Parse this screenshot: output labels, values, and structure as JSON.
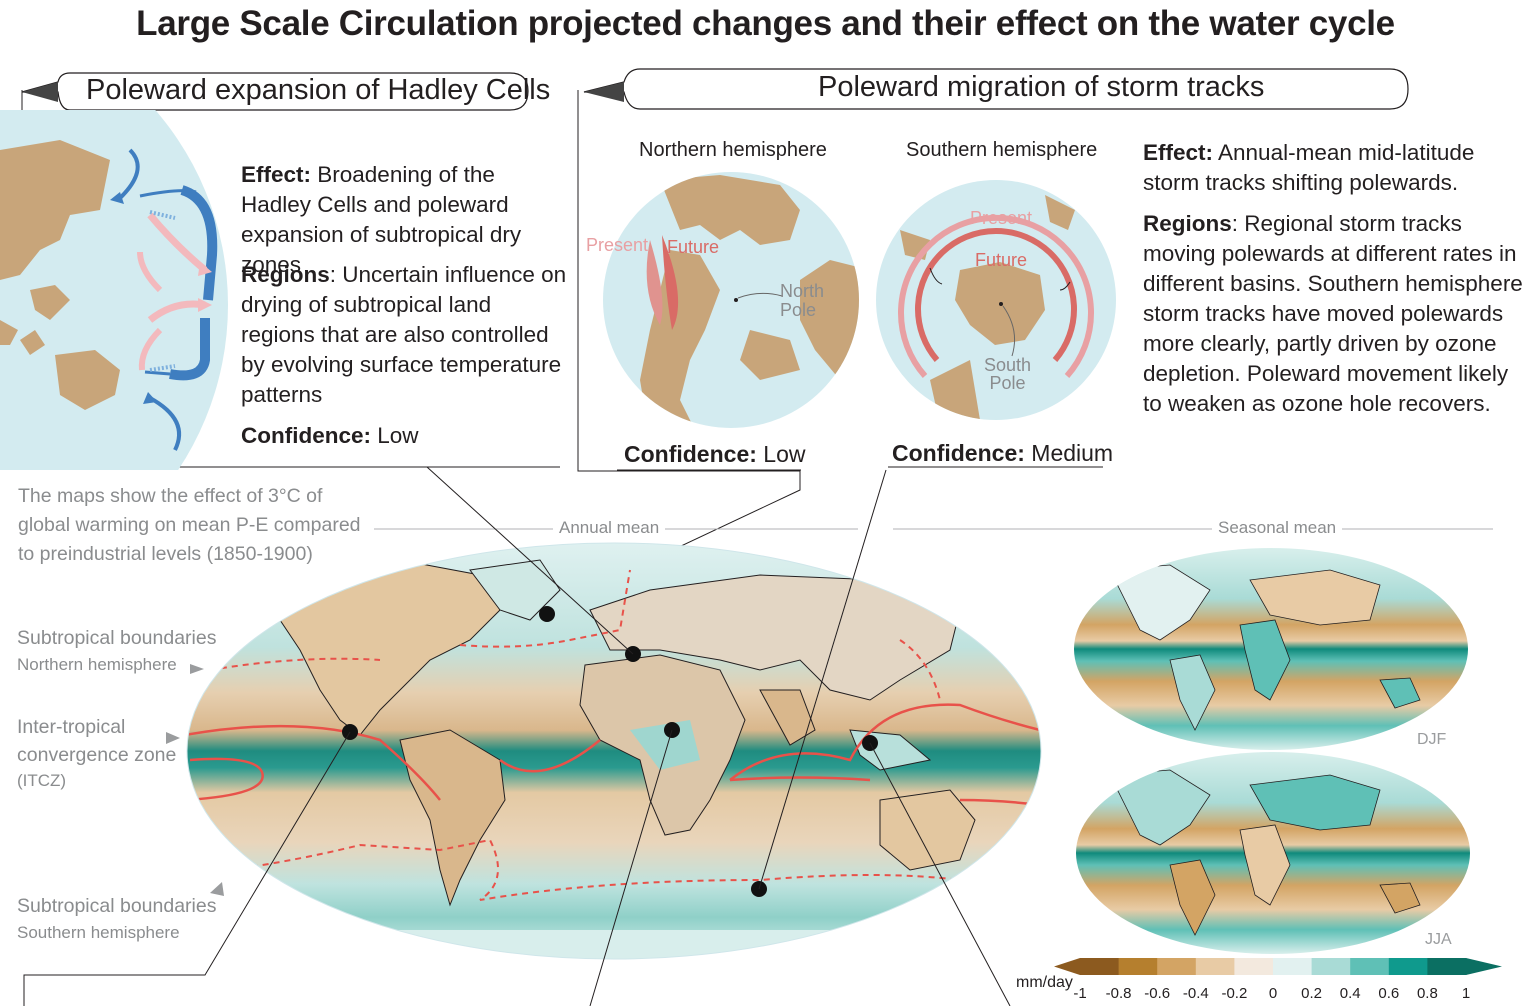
{
  "title": "Large Scale Circulation projected changes and their effect on the water cycle",
  "hadley": {
    "header": "Poleward expansion of Hadley Cells",
    "effect_label": "Effect:",
    "effect_text": " Broadening of the Hadley Cells and poleward expansion of subtropical dry zones",
    "regions_label": "Regions",
    "regions_text": ": Uncertain influence on drying of subtropical land regions that are also controlled by evolving surface temperature patterns",
    "confidence_label": "Confidence:",
    "confidence_value": " Low"
  },
  "storm": {
    "header": "Poleward migration of storm tracks",
    "nh_label": "Northern hemisphere",
    "sh_label": "Southern hemisphere",
    "present": "Present",
    "future": "Future",
    "north_pole": [
      "North",
      "Pole"
    ],
    "south_pole": [
      "South",
      "Pole"
    ],
    "nh_conf_label": "Confidence:",
    "nh_conf_value": " Low",
    "sh_conf_label": "Confidence:",
    "sh_conf_value": " Medium",
    "effect_label": "Effect:",
    "effect_text": " Annual-mean mid-latitude storm tracks shifting polewards.",
    "regions_label": "Regions",
    "regions_text": ": Regional storm tracks moving polewards at different rates in different basins. Southern hemisphere storm tracks have moved polewards more clearly, partly driven by ozone depletion. Poleward movement likely to weaken as ozone hole recovers."
  },
  "maps": {
    "caption": "The maps show the effect of 3°C of global warming on mean P-E compared to preindustrial levels (1850-1900)",
    "annual_label": "Annual mean",
    "seasonal_label": "Seasonal mean",
    "djf": "DJF",
    "jja": "JJA",
    "nh_boundary_title": "Subtropical boundaries",
    "nh_boundary_sub": "Northern hemisphere",
    "itcz_line1": "Inter-tropical",
    "itcz_line2": "convergence zone",
    "itcz_sub": "(ITCZ)",
    "sh_boundary_title": "Subtropical boundaries",
    "sh_boundary_sub": "Southern hemisphere"
  },
  "colorbar": {
    "unit": "mm/day",
    "ticks": [
      "-1",
      "-0.8",
      "-0.6",
      "-0.4",
      "-0.2",
      "0",
      "0.2",
      "0.4",
      "0.6",
      "0.8",
      "1"
    ],
    "colors": [
      "#8c5a1f",
      "#b57f2e",
      "#d3a464",
      "#e8cba5",
      "#f3e9de",
      "#e2f1f0",
      "#a9dbd6",
      "#5fc0b6",
      "#0f9a8d",
      "#0b6f62"
    ]
  },
  "palette": {
    "ocean": "#d3ebf0",
    "land": "#c8a57a",
    "itcz": "#e8524a",
    "hadley_blue": "#3f7ec0",
    "hadley_pink": "#f3b9bd"
  }
}
